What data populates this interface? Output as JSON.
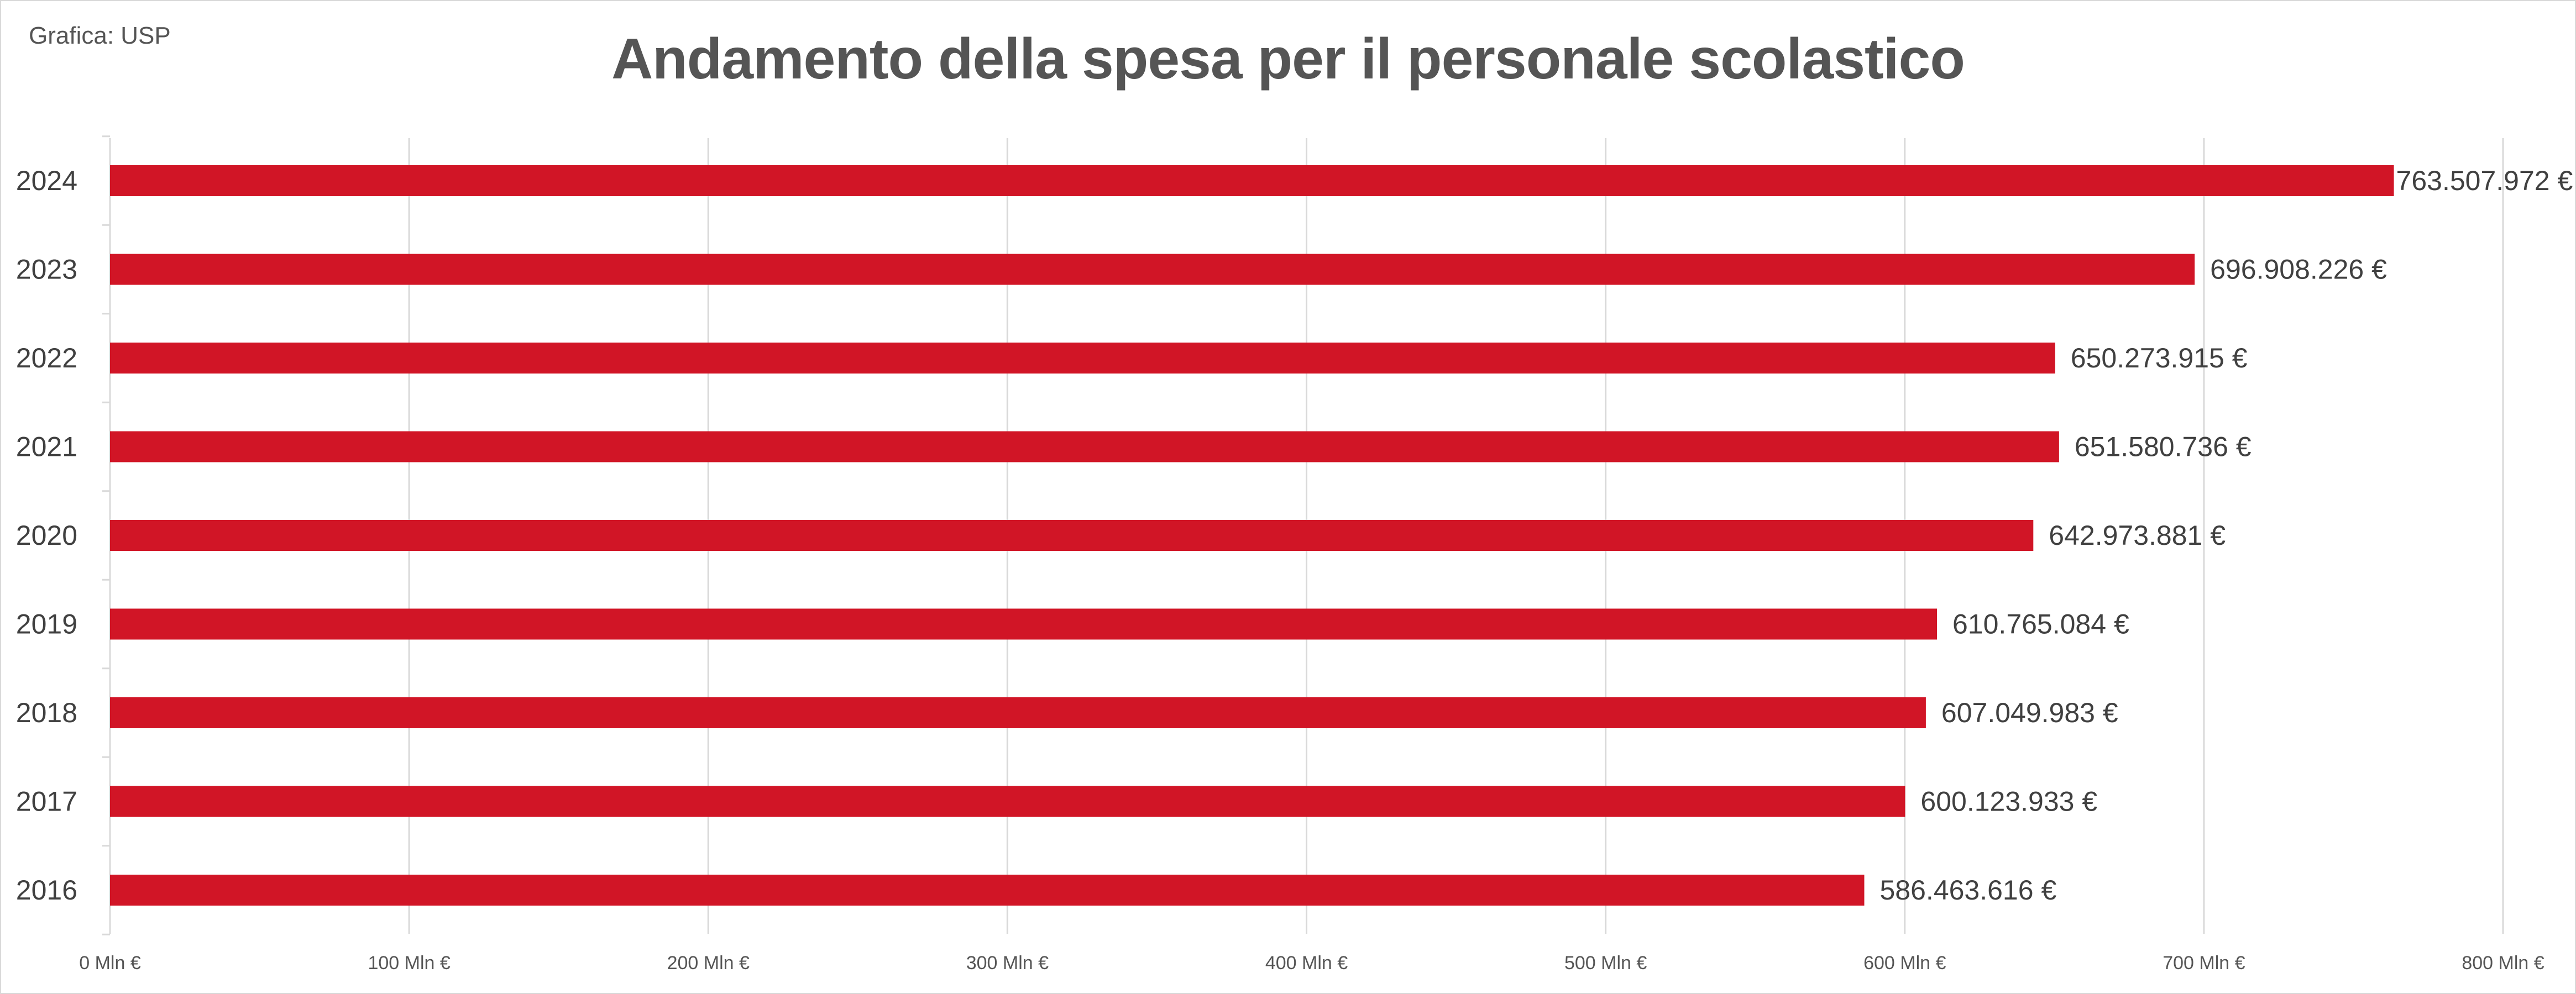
{
  "credit": "Grafica: USP",
  "chart_data": {
    "type": "bar",
    "orientation": "horizontal",
    "title": "Andamento della spesa per il personale scolastico",
    "categories": [
      "2024",
      "2023",
      "2022",
      "2021",
      "2020",
      "2019",
      "2018",
      "2017",
      "2016"
    ],
    "values": [
      763507972,
      696908226,
      650273915,
      651580736,
      642973881,
      610765084,
      607049983,
      600123933,
      586463616
    ],
    "value_labels": [
      "763.507.972 €",
      "696.908.226 €",
      "650.273.915 €",
      "651.580.736 €",
      "642.973.881 €",
      "610.765.084 €",
      "607.049.983 €",
      "600.123.933 €",
      "586.463.616 €"
    ],
    "x_ticks": [
      0,
      100000000,
      200000000,
      300000000,
      400000000,
      500000000,
      600000000,
      700000000,
      800000000
    ],
    "x_tick_labels": [
      "0 Mln €",
      "100 Mln €",
      "200 Mln €",
      "300 Mln €",
      "400 Mln €",
      "500 Mln €",
      "600 Mln €",
      "700 Mln €",
      "800 Mln €"
    ],
    "xlim": [
      0,
      800000000
    ],
    "xlabel": "",
    "ylabel": "",
    "grid": true,
    "legend": "none",
    "colors": {
      "bar": "#d11526",
      "grid": "#d9d9d9",
      "axis_text": "#555555",
      "label_text": "#404040"
    }
  }
}
